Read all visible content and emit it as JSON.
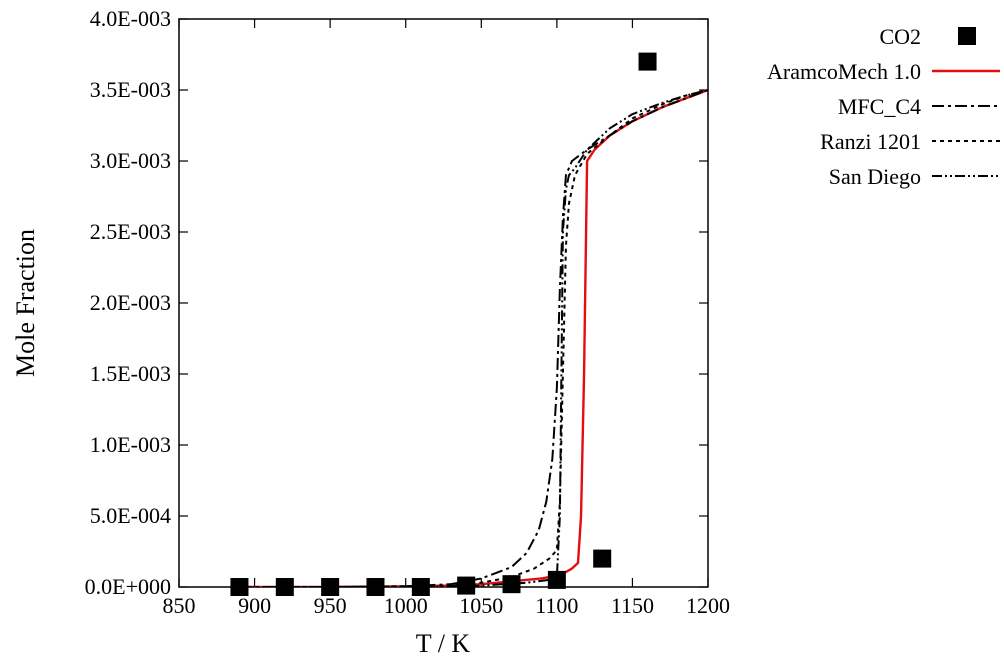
{
  "chart_data": {
    "type": "line",
    "xlabel": "T / K",
    "ylabel": "Mole Fraction",
    "xlim": [
      850,
      1200
    ],
    "ylim": [
      0,
      0.004
    ],
    "xticks": [
      850,
      900,
      950,
      1000,
      1050,
      1100,
      1150,
      1200
    ],
    "xtick_labels": [
      "850",
      "900",
      "950",
      "1000",
      "1050",
      "1100",
      "1150",
      "1200"
    ],
    "yticks": [
      0,
      0.0005,
      0.001,
      0.0015,
      0.002,
      0.0025,
      0.003,
      0.0035,
      0.004
    ],
    "ytick_labels": [
      "0.0E+000",
      "5.0E-004",
      "1.0E-003",
      "1.5E-003",
      "2.0E-003",
      "2.5E-003",
      "3.0E-003",
      "3.5E-003",
      "4.0E-003"
    ],
    "grid": false,
    "legend_position": "outside top-right",
    "series": [
      {
        "name": "CO2",
        "kind": "scatter",
        "marker": "square",
        "color": "#000000",
        "x": [
          890,
          920,
          950,
          980,
          1010,
          1040,
          1070,
          1100,
          1130,
          1160
        ],
        "y": [
          0.0,
          0.0,
          0.0,
          0.0,
          0.0,
          1e-05,
          2e-05,
          5e-05,
          0.0002,
          0.0037
        ]
      },
      {
        "name": "AramcoMech 1.0",
        "kind": "line",
        "color": "#e01010",
        "dash": "solid",
        "x": [
          890,
          950,
          1000,
          1030,
          1050,
          1070,
          1090,
          1100,
          1105,
          1110,
          1114,
          1116,
          1118,
          1120,
          1125,
          1135,
          1150,
          1170,
          1185,
          1200
        ],
        "y": [
          0.0,
          0.0,
          5e-06,
          1e-05,
          2e-05,
          4e-05,
          6e-05,
          8e-05,
          0.0001,
          0.00013,
          0.00017,
          0.0005,
          0.0015,
          0.003,
          0.00308,
          0.00318,
          0.00328,
          0.00338,
          0.00344,
          0.0035
        ]
      },
      {
        "name": "MFC_C4",
        "kind": "line",
        "color": "#000000",
        "dash": "12,4,3,4",
        "x": [
          890,
          950,
          1000,
          1030,
          1050,
          1070,
          1080,
          1088,
          1093,
          1097,
          1100,
          1102,
          1104,
          1106,
          1110,
          1120,
          1135,
          1150,
          1170,
          1185,
          1200
        ],
        "y": [
          0.0,
          0.0,
          5e-06,
          2e-05,
          6e-05,
          0.00014,
          0.00024,
          0.0004,
          0.0006,
          0.0009,
          0.0014,
          0.0021,
          0.0026,
          0.0029,
          0.003,
          0.00308,
          0.00318,
          0.00328,
          0.00338,
          0.00344,
          0.0035
        ]
      },
      {
        "name": "Ranzi 1201",
        "kind": "line",
        "color": "#000000",
        "dash": "4,4",
        "x": [
          890,
          950,
          1000,
          1030,
          1050,
          1070,
          1085,
          1095,
          1100,
          1102,
          1104,
          1106,
          1108,
          1112,
          1120,
          1135,
          1150,
          1170,
          1185,
          1200
        ],
        "y": [
          0.0,
          0.0,
          5e-06,
          1e-05,
          3e-05,
          7e-05,
          0.00013,
          0.0002,
          0.00026,
          0.0006,
          0.0015,
          0.0024,
          0.0027,
          0.0029,
          0.00305,
          0.00318,
          0.0033,
          0.0034,
          0.00346,
          0.0035
        ]
      },
      {
        "name": "San Diego",
        "kind": "line",
        "color": "#000000",
        "dash": "10,3,2,3,2,3",
        "x": [
          890,
          950,
          1000,
          1050,
          1080,
          1095,
          1100,
          1102,
          1103,
          1104,
          1106,
          1108,
          1112,
          1120,
          1135,
          1150,
          1170,
          1185,
          1200
        ],
        "y": [
          0.0,
          0.0,
          0.0,
          1e-05,
          3e-05,
          5e-05,
          7e-05,
          0.0005,
          0.0015,
          0.0025,
          0.0028,
          0.0029,
          0.00295,
          0.00308,
          0.00323,
          0.00333,
          0.00341,
          0.00346,
          0.0035
        ]
      }
    ]
  }
}
